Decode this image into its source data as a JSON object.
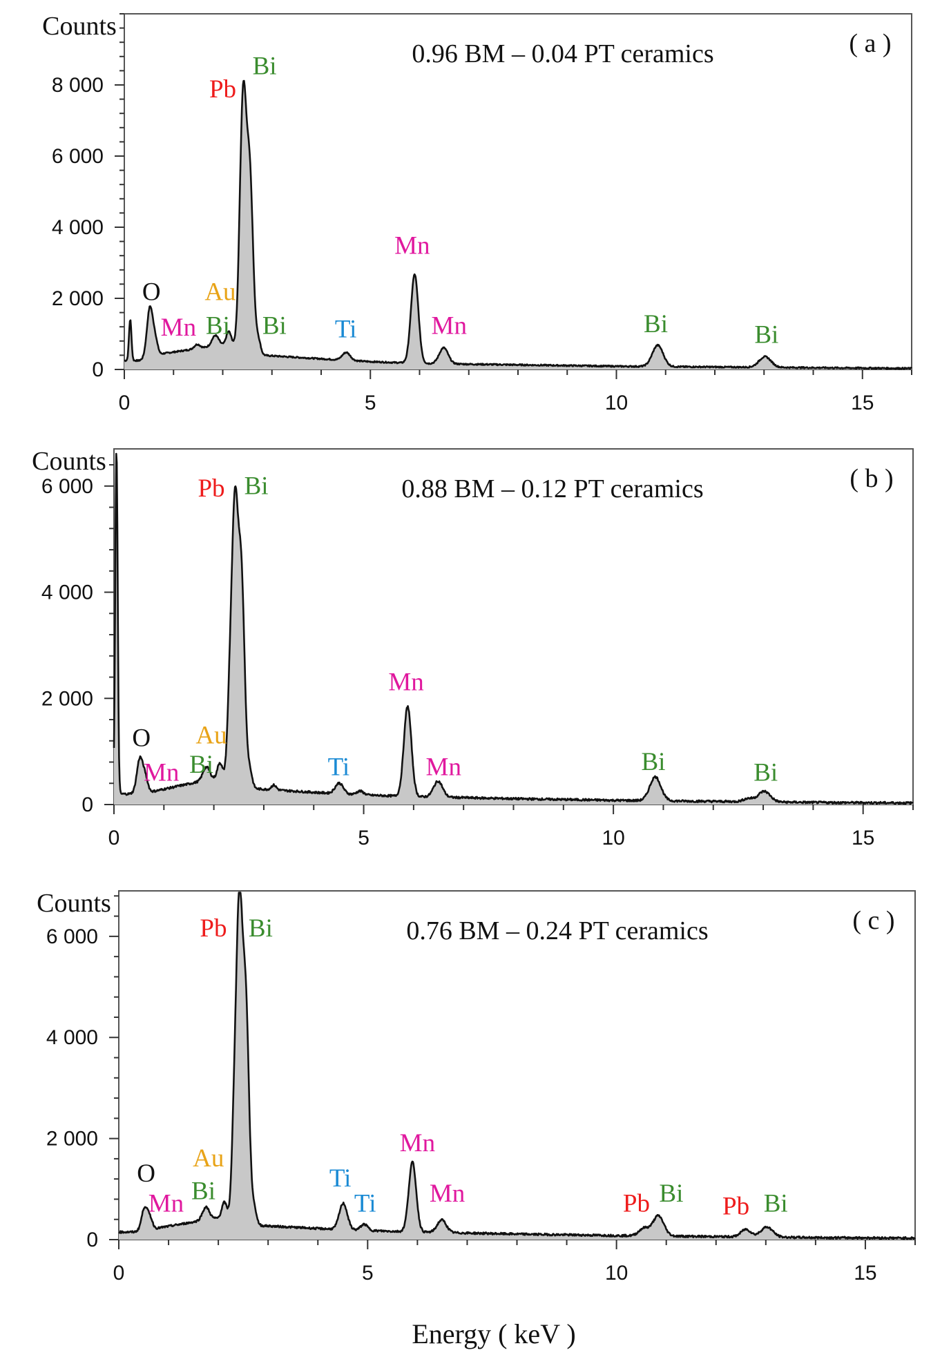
{
  "chart_data": [
    {
      "type": "line",
      "panel_label": "( a )",
      "title": "0.96 BM – 0.04 PT  ceramics",
      "ylabel": "Counts",
      "xlabel": "",
      "xlim": [
        0,
        16
      ],
      "ylim": [
        0,
        10000
      ],
      "x_ticks": [
        0,
        5,
        10,
        15
      ],
      "x_tick_labels": [
        "0",
        "5",
        "10",
        "15"
      ],
      "y_ticks": [
        0,
        2000,
        4000,
        6000,
        8000
      ],
      "y_tick_labels": [
        "0",
        "2 000",
        "4 000",
        "6 000",
        "8 000"
      ],
      "baseline": 250,
      "background": [
        [
          0.3,
          250
        ],
        [
          0.8,
          450
        ],
        [
          1.8,
          650
        ],
        [
          2.2,
          700
        ],
        [
          2.8,
          400
        ],
        [
          4,
          300
        ],
        [
          5,
          220
        ],
        [
          6,
          170
        ],
        [
          8,
          130
        ],
        [
          10,
          90
        ],
        [
          12,
          70
        ],
        [
          14,
          50
        ],
        [
          16,
          30
        ]
      ],
      "peaks": [
        {
          "x": 0.12,
          "height": 1150,
          "width": 0.025
        },
        {
          "x": 0.52,
          "height": 1400,
          "width": 0.06
        },
        {
          "x": 0.63,
          "height": 400,
          "width": 0.05
        },
        {
          "x": 1.48,
          "height": 120,
          "width": 0.06
        },
        {
          "x": 1.85,
          "height": 300,
          "width": 0.07
        },
        {
          "x": 2.12,
          "height": 380,
          "width": 0.05
        },
        {
          "x": 2.35,
          "height": 1200,
          "width": 0.05
        },
        {
          "x": 2.42,
          "height": 6400,
          "width": 0.06
        },
        {
          "x": 2.55,
          "height": 4900,
          "width": 0.065
        },
        {
          "x": 2.72,
          "height": 400,
          "width": 0.05
        },
        {
          "x": 4.51,
          "height": 220,
          "width": 0.08
        },
        {
          "x": 5.9,
          "height": 2500,
          "width": 0.075
        },
        {
          "x": 6.49,
          "height": 450,
          "width": 0.09
        },
        {
          "x": 10.84,
          "height": 600,
          "width": 0.11
        },
        {
          "x": 13.02,
          "height": 300,
          "width": 0.12
        }
      ],
      "annotations": [
        {
          "text": "O",
          "x": 0.55,
          "y": 1950,
          "color": "#111111"
        },
        {
          "text": "Mn",
          "x": 1.1,
          "y": 950,
          "color": "#e0189e"
        },
        {
          "text": "Au",
          "x": 1.95,
          "y": 1950,
          "color": "#e8a317"
        },
        {
          "text": "Bi",
          "x": 1.9,
          "y": 1000,
          "color": "#3a8c2e"
        },
        {
          "text": "Pb",
          "x": 2.0,
          "y": 7650,
          "color": "#ee1c1c"
        },
        {
          "text": "Bi",
          "x": 2.85,
          "y": 8300,
          "color": "#3a8c2e"
        },
        {
          "text": "Bi",
          "x": 3.05,
          "y": 1000,
          "color": "#3a8c2e"
        },
        {
          "text": "Ti",
          "x": 4.5,
          "y": 900,
          "color": "#1a8ad4"
        },
        {
          "text": "Mn",
          "x": 5.85,
          "y": 3250,
          "color": "#e0189e"
        },
        {
          "text": "Mn",
          "x": 6.6,
          "y": 1000,
          "color": "#e0189e"
        },
        {
          "text": "Bi",
          "x": 10.8,
          "y": 1050,
          "color": "#3a8c2e"
        },
        {
          "text": "Bi",
          "x": 13.05,
          "y": 750,
          "color": "#3a8c2e"
        }
      ]
    },
    {
      "type": "line",
      "panel_label": "( b )",
      "title": "0.88 BM – 0.12 PT  ceramics",
      "ylabel": "Counts",
      "xlabel": "",
      "xlim": [
        0,
        16
      ],
      "ylim": [
        0,
        6700
      ],
      "x_ticks": [
        0,
        5,
        10,
        15
      ],
      "x_tick_labels": [
        "0",
        "5",
        "10",
        "15"
      ],
      "y_ticks": [
        0,
        2000,
        4000,
        6000
      ],
      "y_tick_labels": [
        "0",
        "2 000",
        "4 000",
        "6 000"
      ],
      "baseline": 200,
      "background": [
        [
          0.3,
          200
        ],
        [
          0.8,
          250
        ],
        [
          1.8,
          450
        ],
        [
          2.2,
          500
        ],
        [
          2.8,
          300
        ],
        [
          4,
          230
        ],
        [
          5,
          180
        ],
        [
          6,
          150
        ],
        [
          8,
          110
        ],
        [
          10,
          80
        ],
        [
          12,
          60
        ],
        [
          14,
          40
        ],
        [
          16,
          30
        ]
      ],
      "peaks": [
        {
          "x": 0.05,
          "height": 6500,
          "width": 0.025
        },
        {
          "x": 0.52,
          "height": 650,
          "width": 0.06
        },
        {
          "x": 0.63,
          "height": 250,
          "width": 0.05
        },
        {
          "x": 1.85,
          "height": 250,
          "width": 0.07
        },
        {
          "x": 2.12,
          "height": 300,
          "width": 0.05
        },
        {
          "x": 2.32,
          "height": 1400,
          "width": 0.05
        },
        {
          "x": 2.42,
          "height": 4800,
          "width": 0.06
        },
        {
          "x": 2.55,
          "height": 3900,
          "width": 0.065
        },
        {
          "x": 2.72,
          "height": 300,
          "width": 0.05
        },
        {
          "x": 3.2,
          "height": 90,
          "width": 0.05
        },
        {
          "x": 4.51,
          "height": 200,
          "width": 0.08
        },
        {
          "x": 4.93,
          "height": 70,
          "width": 0.07
        },
        {
          "x": 5.88,
          "height": 1700,
          "width": 0.075
        },
        {
          "x": 6.49,
          "height": 300,
          "width": 0.09
        },
        {
          "x": 10.84,
          "height": 450,
          "width": 0.11
        },
        {
          "x": 13.02,
          "height": 200,
          "width": 0.12
        },
        {
          "x": 12.7,
          "height": 60,
          "width": 0.1
        }
      ],
      "annotations": [
        {
          "text": "O",
          "x": 0.55,
          "y": 1100,
          "color": "#111111"
        },
        {
          "text": "Mn",
          "x": 0.95,
          "y": 450,
          "color": "#e0189e"
        },
        {
          "text": "Au",
          "x": 1.95,
          "y": 1150,
          "color": "#e8a317"
        },
        {
          "text": "Bi",
          "x": 1.75,
          "y": 600,
          "color": "#3a8c2e"
        },
        {
          "text": "Pb",
          "x": 1.95,
          "y": 5800,
          "color": "#ee1c1c"
        },
        {
          "text": "Bi",
          "x": 2.85,
          "y": 5850,
          "color": "#3a8c2e"
        },
        {
          "text": "Ti",
          "x": 4.5,
          "y": 550,
          "color": "#1a8ad4"
        },
        {
          "text": "Mn",
          "x": 5.85,
          "y": 2150,
          "color": "#e0189e"
        },
        {
          "text": "Mn",
          "x": 6.6,
          "y": 550,
          "color": "#e0189e"
        },
        {
          "text": "Bi",
          "x": 10.8,
          "y": 650,
          "color": "#3a8c2e"
        },
        {
          "text": "Bi",
          "x": 13.05,
          "y": 450,
          "color": "#3a8c2e"
        }
      ]
    },
    {
      "type": "line",
      "panel_label": "( c )",
      "title": "0.76 BM – 0.24 PT  ceramics",
      "ylabel": "Counts",
      "xlabel": "Energy ( keV )",
      "xlim": [
        0,
        16
      ],
      "ylim": [
        0,
        6900
      ],
      "x_ticks": [
        0,
        5,
        10,
        15
      ],
      "x_tick_labels": [
        "0",
        "5",
        "10",
        "15"
      ],
      "y_ticks": [
        0,
        2000,
        4000,
        6000
      ],
      "y_tick_labels": [
        "0",
        "2 000",
        "4 000",
        "6 000"
      ],
      "baseline": 150,
      "background": [
        [
          0.3,
          150
        ],
        [
          0.8,
          230
        ],
        [
          1.8,
          400
        ],
        [
          2.2,
          450
        ],
        [
          2.8,
          280
        ],
        [
          4,
          220
        ],
        [
          5,
          180
        ],
        [
          6,
          150
        ],
        [
          8,
          110
        ],
        [
          10,
          80
        ],
        [
          12,
          60
        ],
        [
          14,
          40
        ],
        [
          16,
          30
        ]
      ],
      "peaks": [
        {
          "x": 0.52,
          "height": 450,
          "width": 0.06
        },
        {
          "x": 0.63,
          "height": 200,
          "width": 0.05
        },
        {
          "x": 1.75,
          "height": 250,
          "width": 0.07
        },
        {
          "x": 2.12,
          "height": 300,
          "width": 0.05
        },
        {
          "x": 2.32,
          "height": 1700,
          "width": 0.05
        },
        {
          "x": 2.42,
          "height": 5800,
          "width": 0.06
        },
        {
          "x": 2.55,
          "height": 4300,
          "width": 0.065
        },
        {
          "x": 2.72,
          "height": 300,
          "width": 0.05
        },
        {
          "x": 4.51,
          "height": 520,
          "width": 0.08
        },
        {
          "x": 4.93,
          "height": 120,
          "width": 0.07
        },
        {
          "x": 5.9,
          "height": 1380,
          "width": 0.075
        },
        {
          "x": 6.49,
          "height": 250,
          "width": 0.09
        },
        {
          "x": 10.55,
          "height": 150,
          "width": 0.1
        },
        {
          "x": 10.84,
          "height": 400,
          "width": 0.11
        },
        {
          "x": 12.6,
          "height": 150,
          "width": 0.1
        },
        {
          "x": 13.02,
          "height": 200,
          "width": 0.12
        }
      ],
      "annotations": [
        {
          "text": "O",
          "x": 0.55,
          "y": 1150,
          "color": "#111111"
        },
        {
          "text": "Mn",
          "x": 0.95,
          "y": 550,
          "color": "#e0189e"
        },
        {
          "text": "Au",
          "x": 1.8,
          "y": 1450,
          "color": "#e8a317"
        },
        {
          "text": "Bi",
          "x": 1.7,
          "y": 800,
          "color": "#3a8c2e"
        },
        {
          "text": "Pb",
          "x": 1.9,
          "y": 6000,
          "color": "#ee1c1c"
        },
        {
          "text": "Bi",
          "x": 2.85,
          "y": 6000,
          "color": "#3a8c2e"
        },
        {
          "text": "Ti",
          "x": 4.45,
          "y": 1050,
          "color": "#1a8ad4"
        },
        {
          "text": "Ti",
          "x": 4.95,
          "y": 550,
          "color": "#1a8ad4"
        },
        {
          "text": "Mn",
          "x": 6.0,
          "y": 1750,
          "color": "#e0189e"
        },
        {
          "text": "Mn",
          "x": 6.6,
          "y": 750,
          "color": "#e0189e"
        },
        {
          "text": "Pb",
          "x": 10.4,
          "y": 550,
          "color": "#ee1c1c"
        },
        {
          "text": "Bi",
          "x": 11.1,
          "y": 750,
          "color": "#3a8c2e"
        },
        {
          "text": "Pb",
          "x": 12.4,
          "y": 500,
          "color": "#ee1c1c"
        },
        {
          "text": "Bi",
          "x": 13.2,
          "y": 550,
          "color": "#3a8c2e"
        }
      ]
    }
  ]
}
